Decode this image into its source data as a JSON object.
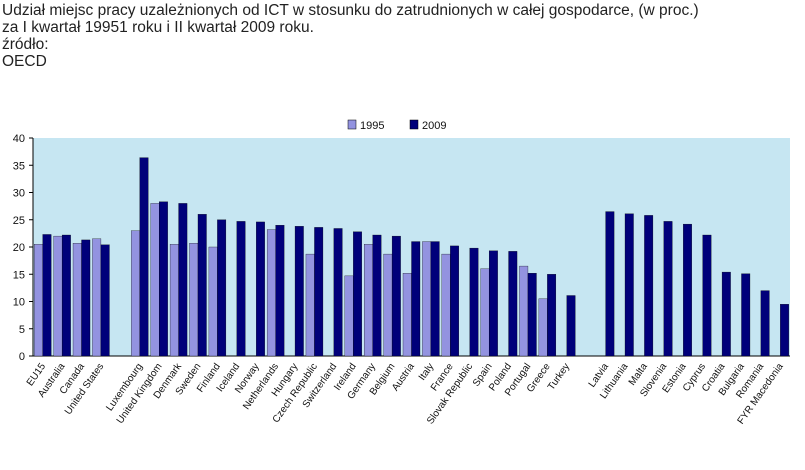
{
  "header": {
    "line1": "Udział miejsc pracy uzależnionych od ICT w stosunku do zatrudnionych w całej gospodarce, (w proc.)",
    "line2": "za I kwartał 19951 roku i II kwartał 2009 roku.",
    "line3": "źródło:",
    "line4": "OECD"
  },
  "chart_data": {
    "type": "bar",
    "title": "",
    "xlabel": "",
    "ylabel": "",
    "ylim": [
      0,
      40
    ],
    "yticks": [
      0,
      5,
      10,
      15,
      20,
      25,
      30,
      35,
      40
    ],
    "grid": false,
    "legend_position": "top-center",
    "categories": [
      "EU15",
      "Australia",
      "Canada",
      "United States",
      "",
      "Luxembourg",
      "United Kingdom",
      "Denmark",
      "Sweden",
      "Finland",
      "Iceland",
      "Norway",
      "Netherlands",
      "Hungary",
      "Czech Republic",
      "Switzerland",
      "Ireland",
      "Germany",
      "Belgium",
      "Austria",
      "Italy",
      "France",
      "Slovak Republic",
      "Spain",
      "Poland",
      "Portugal",
      "Greece",
      "Turkey",
      "",
      "Latvia",
      "Lithuania",
      "Malta",
      "Slovenia",
      "Estonia",
      "Cyprus",
      "Croatia",
      "Bulgaria",
      "Romania",
      "FYR Macedonia"
    ],
    "series": [
      {
        "name": "1995",
        "color": "#9393e0",
        "values": [
          20.5,
          22.0,
          20.7,
          21.5,
          null,
          23.0,
          28.0,
          20.5,
          20.7,
          20.0,
          null,
          null,
          23.2,
          null,
          18.7,
          null,
          14.7,
          20.5,
          18.7,
          15.2,
          21.0,
          18.7,
          null,
          16.0,
          null,
          16.5,
          10.5,
          null,
          null,
          null,
          null,
          null,
          null,
          null,
          null,
          null,
          null,
          null,
          null
        ]
      },
      {
        "name": "2009",
        "color": "#00007a",
        "values": [
          22.3,
          22.2,
          21.3,
          20.4,
          null,
          36.4,
          28.3,
          28.0,
          26.0,
          25.0,
          24.7,
          24.6,
          24.0,
          23.8,
          23.6,
          23.4,
          22.8,
          22.2,
          22.0,
          21.0,
          21.0,
          20.2,
          19.8,
          19.3,
          19.2,
          15.2,
          15.0,
          11.1,
          null,
          26.5,
          26.1,
          25.8,
          24.7,
          24.2,
          22.2,
          15.4,
          15.1,
          12.0,
          9.5
        ]
      }
    ]
  }
}
